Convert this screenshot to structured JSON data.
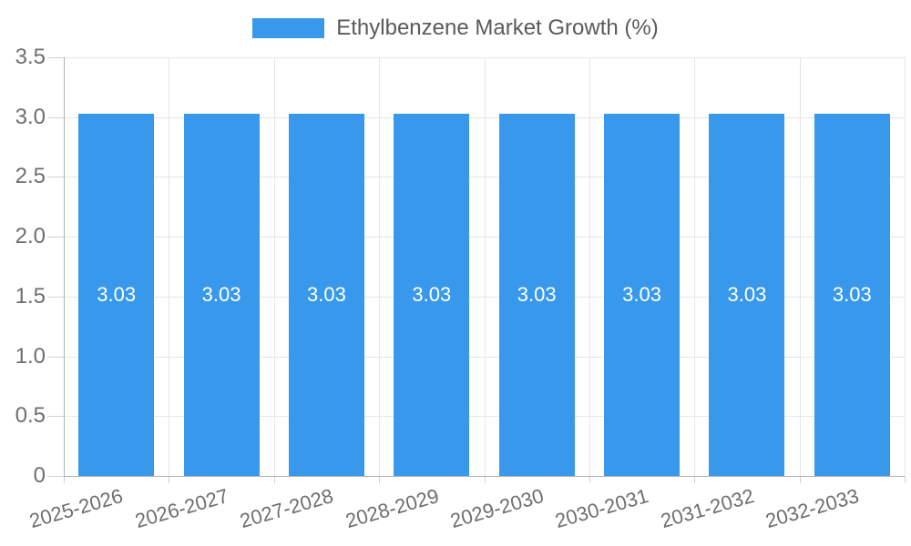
{
  "legend": {
    "label": "Ethylbenzene Market Growth (%)"
  },
  "chart_data": {
    "type": "bar",
    "title": "",
    "xlabel": "",
    "ylabel": "",
    "legend_position": "top",
    "grid": true,
    "categories": [
      "2025-2026",
      "2026-2027",
      "2027-2028",
      "2028-2029",
      "2029-2030",
      "2030-2031",
      "2031-2032",
      "2032-2033"
    ],
    "series": [
      {
        "name": "Ethylbenzene Market Growth (%)",
        "values": [
          3.03,
          3.03,
          3.03,
          3.03,
          3.03,
          3.03,
          3.03,
          3.03
        ]
      }
    ],
    "value_labels": [
      "3.03",
      "3.03",
      "3.03",
      "3.03",
      "3.03",
      "3.03",
      "3.03",
      "3.03"
    ],
    "ylim": [
      0,
      3.5
    ],
    "y_ticks": [
      {
        "label": "3.5",
        "value": 3.5
      },
      {
        "label": "3.0",
        "value": 3.0
      },
      {
        "label": "2.5",
        "value": 2.5
      },
      {
        "label": "2.0",
        "value": 2.0
      },
      {
        "label": "1.5",
        "value": 1.5
      },
      {
        "label": "1.0",
        "value": 1.0
      },
      {
        "label": "0.5",
        "value": 0.5
      },
      {
        "label": "0",
        "value": 0
      }
    ],
    "colors": {
      "bar": "#3899ec",
      "bar_label": "#ffffff",
      "grid": "#e6e6e6",
      "axis": "#b1b1b1",
      "tick": "#d2d2d2",
      "tick_label": "#6d6e71",
      "legend_label": "#595a5d"
    }
  }
}
